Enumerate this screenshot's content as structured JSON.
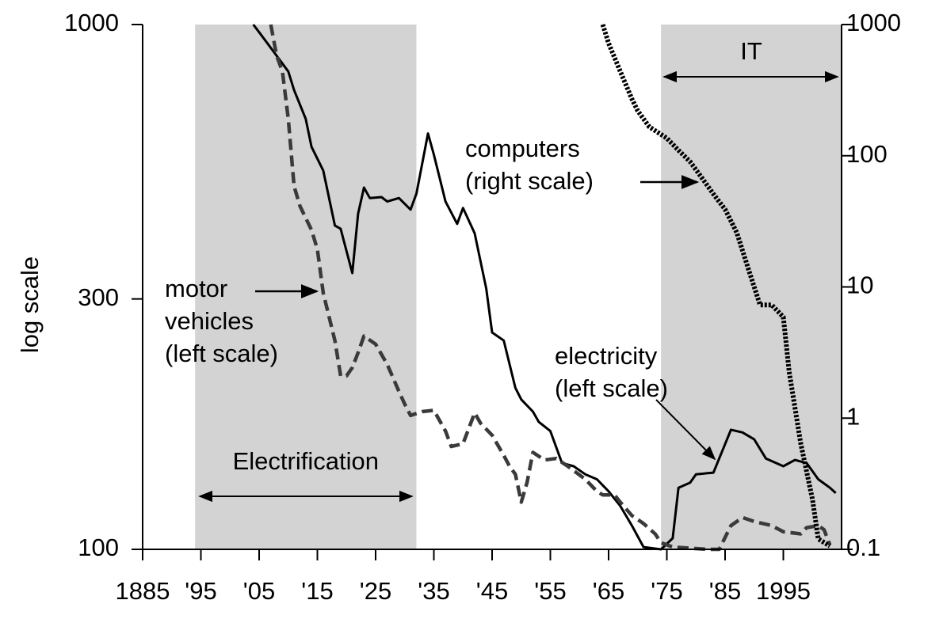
{
  "chart_data": {
    "type": "line",
    "y_label": "log scale",
    "xlim": [
      1885,
      2005
    ],
    "xticks": [
      {
        "value": 1885,
        "label": "1885"
      },
      {
        "value": 1895,
        "label": "'95"
      },
      {
        "value": 1905,
        "label": "'05"
      },
      {
        "value": 1915,
        "label": "'15"
      },
      {
        "value": 1925,
        "label": "'25"
      },
      {
        "value": 1935,
        "label": "'35"
      },
      {
        "value": 1945,
        "label": "'45"
      },
      {
        "value": 1955,
        "label": "'55"
      },
      {
        "value": 1965,
        "label": "'65"
      },
      {
        "value": 1975,
        "label": "'75"
      },
      {
        "value": 1985,
        "label": "'85"
      },
      {
        "value": 1995,
        "label": "1995"
      }
    ],
    "ylim": [
      100,
      1000
    ],
    "yticks": [
      100,
      300,
      1000
    ],
    "ylog": true,
    "y2lim": [
      0.1,
      1000
    ],
    "y2ticks": [
      0.1,
      1,
      10,
      100,
      1000
    ],
    "y2log": true,
    "periods": [
      {
        "label": "Electrification",
        "from": 1894,
        "to": 1932
      },
      {
        "label": "IT",
        "from": 1974,
        "to": 2005
      }
    ],
    "period_color": "#d3d3d3",
    "series": [
      {
        "name": "electricity",
        "color": "#000000",
        "dash": "solid",
        "x": [
          1904,
          1905,
          1908,
          1910,
          1911,
          1913,
          1914,
          1916,
          1918,
          1919,
          1921,
          1922,
          1923,
          1924,
          1926,
          1927,
          1929,
          1931,
          1932,
          1934,
          1935,
          1937,
          1939,
          1940,
          1942,
          1944,
          1945,
          1947,
          1949,
          1950,
          1952,
          1953,
          1955,
          1957,
          1959,
          1961,
          1963,
          1965,
          1967,
          1969,
          1971,
          1974,
          1976,
          1977,
          1979,
          1980,
          1983,
          1986,
          1988,
          1990,
          1992,
          1995,
          1997,
          1999,
          2001,
          2003,
          2004
        ],
        "values": [
          1000,
          967,
          872,
          814,
          750,
          661,
          585,
          527,
          414,
          408,
          336,
          436,
          489,
          467,
          469,
          460,
          467,
          444,
          476,
          620,
          565,
          460,
          417,
          447,
          400,
          314,
          259,
          250,
          203,
          193,
          183,
          175,
          168,
          146,
          144,
          139,
          136,
          129,
          121,
          111,
          101,
          100,
          105,
          131,
          134,
          139,
          140,
          169,
          167,
          162,
          149,
          144,
          148,
          146,
          136,
          131,
          128
        ]
      },
      {
        "name": "motor vehicles",
        "color": "#3a3a3a",
        "dash": "dashed",
        "x": [
          1907,
          1908,
          1909,
          1910,
          1911,
          1912,
          1914,
          1915,
          1916,
          1918,
          1919,
          1920,
          1921,
          1922,
          1923,
          1925,
          1927,
          1929,
          1930,
          1931,
          1933,
          1935,
          1937,
          1938,
          1940,
          1942,
          1943,
          1945,
          1947,
          1948,
          1949,
          1950,
          1951,
          1952,
          1954,
          1956,
          1958,
          1961,
          1963,
          1964,
          1966,
          1967,
          1969,
          1971,
          1973,
          1974,
          1976,
          1982,
          1984,
          1986,
          1988,
          1990,
          1993,
          1995,
          1998,
          1999,
          2001,
          2002,
          2003
        ],
        "values": [
          1000,
          872,
          814,
          661,
          492,
          451,
          406,
          373,
          308,
          250,
          214,
          214,
          222,
          237,
          255,
          246,
          225,
          200,
          189,
          180,
          183,
          184,
          168,
          157,
          159,
          182,
          174,
          165,
          151,
          144,
          139,
          123,
          134,
          153,
          148,
          149,
          144,
          136,
          129,
          127,
          127,
          123,
          116,
          112,
          107,
          103,
          101,
          100,
          100,
          111,
          115,
          113,
          111,
          108,
          107,
          110,
          111,
          109,
          102
        ]
      },
      {
        "name": "computers",
        "color": "#000000",
        "dash": "dotted",
        "axis": "y2",
        "x": [
          1964,
          1965,
          1967,
          1969,
          1970,
          1972,
          1975,
          1977,
          1979,
          1981,
          1983,
          1985,
          1987,
          1989,
          1991,
          1993,
          1995,
          1996,
          1998,
          2000,
          2001,
          2003
        ],
        "values": [
          1000,
          720,
          440,
          271,
          220,
          166,
          136,
          110,
          90,
          68,
          51,
          39,
          26,
          13.7,
          7.3,
          7.3,
          5.9,
          2.25,
          0.64,
          0.24,
          0.12,
          0.106
        ]
      }
    ],
    "annotations": [
      {
        "lines": [
          "computers",
          "(right scale)"
        ]
      },
      {
        "lines": [
          "motor",
          "vehicles",
          "(left scale)"
        ]
      },
      {
        "lines": [
          "electricity",
          "(left scale)"
        ]
      }
    ]
  }
}
